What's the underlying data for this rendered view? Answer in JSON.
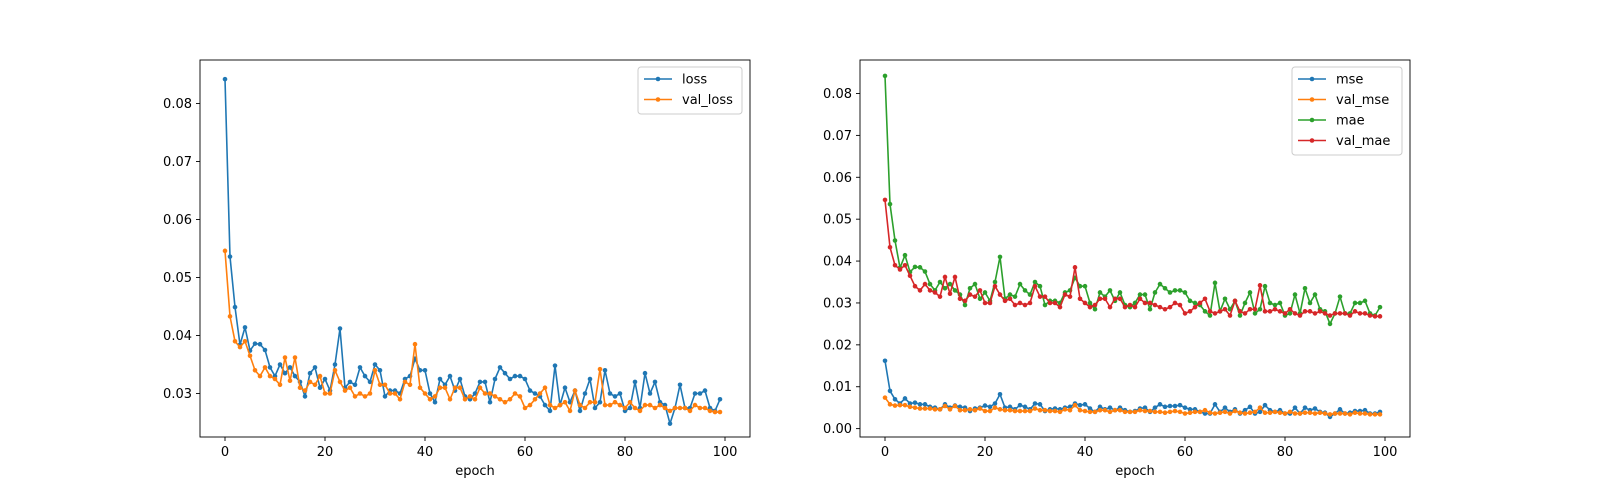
{
  "chart_data": [
    {
      "type": "line",
      "xlabel": "epoch",
      "ylabel": "",
      "xlim": [
        -5,
        105
      ],
      "ylim": [
        0.0225,
        0.0875
      ],
      "xticks": [
        0,
        20,
        40,
        60,
        80,
        100
      ],
      "yticks": [
        0.03,
        0.04,
        0.05,
        0.06,
        0.07,
        0.08
      ],
      "ytick_decimals": 2,
      "legend": "top-right",
      "markers": true,
      "series": [
        {
          "name": "loss",
          "color": "#1f77b4",
          "values": [
            0.0842,
            0.0536,
            0.0449,
            0.0384,
            0.0414,
            0.0374,
            0.0386,
            0.0385,
            0.0375,
            0.0345,
            0.033,
            0.035,
            0.0335,
            0.0345,
            0.033,
            0.032,
            0.0295,
            0.0335,
            0.0345,
            0.031,
            0.0325,
            0.0305,
            0.035,
            0.0412,
            0.031,
            0.032,
            0.0315,
            0.0345,
            0.033,
            0.032,
            0.035,
            0.034,
            0.0295,
            0.0305,
            0.0305,
            0.03,
            0.0325,
            0.033,
            0.036,
            0.034,
            0.034,
            0.03,
            0.0285,
            0.0325,
            0.0315,
            0.033,
            0.0305,
            0.0325,
            0.0295,
            0.029,
            0.03,
            0.032,
            0.032,
            0.0285,
            0.0325,
            0.0345,
            0.0335,
            0.0325,
            0.033,
            0.033,
            0.0325,
            0.0305,
            0.03,
            0.0295,
            0.028,
            0.027,
            0.0348,
            0.028,
            0.031,
            0.0285,
            0.0305,
            0.027,
            0.03,
            0.0325,
            0.0275,
            0.0285,
            0.034,
            0.03,
            0.0295,
            0.03,
            0.027,
            0.0275,
            0.032,
            0.0275,
            0.0335,
            0.03,
            0.032,
            0.0285,
            0.028,
            0.0248,
            0.0275,
            0.0315,
            0.0275,
            0.0275,
            0.03,
            0.03,
            0.0305,
            0.0275,
            0.027,
            0.029
          ]
        },
        {
          "name": "val_loss",
          "color": "#ff7f0e",
          "values": [
            0.0546,
            0.0433,
            0.039,
            0.038,
            0.039,
            0.0365,
            0.034,
            0.033,
            0.0345,
            0.033,
            0.0325,
            0.0315,
            0.0362,
            0.0322,
            0.0362,
            0.031,
            0.0305,
            0.032,
            0.0315,
            0.033,
            0.03,
            0.03,
            0.034,
            0.032,
            0.0305,
            0.031,
            0.0295,
            0.03,
            0.0295,
            0.03,
            0.034,
            0.0315,
            0.0315,
            0.03,
            0.03,
            0.029,
            0.032,
            0.0315,
            0.0385,
            0.031,
            0.03,
            0.029,
            0.0295,
            0.031,
            0.031,
            0.029,
            0.031,
            0.031,
            0.029,
            0.0295,
            0.029,
            0.031,
            0.03,
            0.03,
            0.0295,
            0.029,
            0.0285,
            0.029,
            0.03,
            0.0295,
            0.0275,
            0.028,
            0.029,
            0.03,
            0.031,
            0.028,
            0.0275,
            0.028,
            0.0285,
            0.027,
            0.0305,
            0.028,
            0.0275,
            0.0285,
            0.0285,
            0.0342,
            0.028,
            0.028,
            0.0285,
            0.028,
            0.0275,
            0.0285,
            0.0275,
            0.027,
            0.028,
            0.028,
            0.0275,
            0.028,
            0.0275,
            0.027,
            0.0275,
            0.0275,
            0.0275,
            0.027,
            0.028,
            0.0275,
            0.0275,
            0.027,
            0.0268,
            0.0268
          ]
        }
      ]
    },
    {
      "type": "line",
      "xlabel": "epoch",
      "ylabel": "",
      "xlim": [
        -5,
        105
      ],
      "ylim": [
        -0.002,
        0.088
      ],
      "xticks": [
        0,
        20,
        40,
        60,
        80,
        100
      ],
      "yticks": [
        0.0,
        0.01,
        0.02,
        0.03,
        0.04,
        0.05,
        0.06,
        0.07,
        0.08
      ],
      "ytick_decimals": 2,
      "legend": "top-right",
      "markers": true,
      "series": [
        {
          "name": "mse",
          "color": "#1f77b4",
          "values": [
            0.0162,
            0.009,
            0.007,
            0.006,
            0.0072,
            0.006,
            0.0062,
            0.0058,
            0.0058,
            0.0052,
            0.005,
            0.0046,
            0.0058,
            0.005,
            0.0055,
            0.0052,
            0.005,
            0.0042,
            0.0048,
            0.005,
            0.0055,
            0.0052,
            0.006,
            0.0082,
            0.005,
            0.0052,
            0.0046,
            0.0056,
            0.0052,
            0.0046,
            0.006,
            0.0058,
            0.0042,
            0.0046,
            0.0048,
            0.0046,
            0.005,
            0.0052,
            0.006,
            0.0056,
            0.0058,
            0.0048,
            0.004,
            0.0052,
            0.0046,
            0.005,
            0.0044,
            0.005,
            0.0044,
            0.004,
            0.0042,
            0.0048,
            0.005,
            0.004,
            0.005,
            0.0058,
            0.0052,
            0.0054,
            0.0054,
            0.0056,
            0.005,
            0.0046,
            0.0046,
            0.004,
            0.0036,
            0.0036,
            0.0058,
            0.004,
            0.005,
            0.004,
            0.0046,
            0.0036,
            0.0044,
            0.0052,
            0.0036,
            0.004,
            0.0056,
            0.0044,
            0.004,
            0.0044,
            0.0036,
            0.0036,
            0.005,
            0.0036,
            0.005,
            0.0044,
            0.0048,
            0.004,
            0.0038,
            0.0028,
            0.0036,
            0.0046,
            0.0036,
            0.0038,
            0.0042,
            0.0042,
            0.0044,
            0.0036,
            0.0036,
            0.004
          ]
        },
        {
          "name": "val_mse",
          "color": "#ff7f0e",
          "values": [
            0.0074,
            0.0058,
            0.0055,
            0.0056,
            0.0056,
            0.0052,
            0.005,
            0.0048,
            0.0048,
            0.0048,
            0.0046,
            0.0046,
            0.0054,
            0.0046,
            0.0054,
            0.0044,
            0.0044,
            0.0046,
            0.0044,
            0.0048,
            0.0042,
            0.0042,
            0.005,
            0.0046,
            0.0044,
            0.0044,
            0.0042,
            0.0042,
            0.0042,
            0.0042,
            0.0048,
            0.0044,
            0.0044,
            0.0042,
            0.0042,
            0.004,
            0.0046,
            0.0044,
            0.0056,
            0.0044,
            0.0042,
            0.004,
            0.004,
            0.0044,
            0.0044,
            0.004,
            0.0044,
            0.0044,
            0.004,
            0.004,
            0.004,
            0.0044,
            0.0042,
            0.0042,
            0.004,
            0.004,
            0.0038,
            0.004,
            0.0042,
            0.004,
            0.0036,
            0.0038,
            0.004,
            0.004,
            0.0044,
            0.0038,
            0.0036,
            0.0038,
            0.004,
            0.0036,
            0.0042,
            0.0038,
            0.0036,
            0.0038,
            0.004,
            0.005,
            0.0038,
            0.0038,
            0.004,
            0.0038,
            0.0036,
            0.004,
            0.0036,
            0.0036,
            0.0038,
            0.0038,
            0.0036,
            0.0038,
            0.0036,
            0.0034,
            0.0036,
            0.0036,
            0.0036,
            0.0034,
            0.0038,
            0.0036,
            0.0036,
            0.0034,
            0.0034,
            0.0034
          ]
        },
        {
          "name": "mae",
          "color": "#2ca02c",
          "values": [
            0.0842,
            0.0536,
            0.0449,
            0.0384,
            0.0414,
            0.0374,
            0.0386,
            0.0385,
            0.0375,
            0.0345,
            0.033,
            0.035,
            0.0335,
            0.0345,
            0.033,
            0.032,
            0.0295,
            0.0335,
            0.0345,
            0.031,
            0.0325,
            0.0305,
            0.035,
            0.041,
            0.031,
            0.032,
            0.0315,
            0.0345,
            0.033,
            0.032,
            0.035,
            0.034,
            0.0295,
            0.0305,
            0.0305,
            0.03,
            0.0325,
            0.033,
            0.036,
            0.034,
            0.034,
            0.03,
            0.0285,
            0.0325,
            0.0315,
            0.033,
            0.0305,
            0.0325,
            0.0295,
            0.029,
            0.03,
            0.032,
            0.032,
            0.0285,
            0.0325,
            0.0345,
            0.0335,
            0.0325,
            0.033,
            0.033,
            0.0325,
            0.0305,
            0.03,
            0.0295,
            0.028,
            0.027,
            0.0348,
            0.028,
            0.031,
            0.0285,
            0.0305,
            0.027,
            0.03,
            0.0325,
            0.0275,
            0.0285,
            0.034,
            0.03,
            0.0295,
            0.03,
            0.027,
            0.0275,
            0.032,
            0.0275,
            0.0335,
            0.03,
            0.032,
            0.0285,
            0.028,
            0.025,
            0.0275,
            0.0315,
            0.0275,
            0.0275,
            0.03,
            0.03,
            0.0305,
            0.0275,
            0.027,
            0.029
          ]
        },
        {
          "name": "val_mae",
          "color": "#d62728",
          "values": [
            0.0546,
            0.0433,
            0.039,
            0.038,
            0.039,
            0.0365,
            0.034,
            0.033,
            0.0345,
            0.033,
            0.0325,
            0.0315,
            0.0362,
            0.0322,
            0.0362,
            0.031,
            0.0305,
            0.032,
            0.0315,
            0.033,
            0.03,
            0.03,
            0.034,
            0.032,
            0.0305,
            0.031,
            0.0295,
            0.03,
            0.0295,
            0.03,
            0.034,
            0.0315,
            0.0315,
            0.03,
            0.03,
            0.029,
            0.032,
            0.0315,
            0.0385,
            0.031,
            0.03,
            0.029,
            0.0295,
            0.031,
            0.031,
            0.029,
            0.031,
            0.031,
            0.029,
            0.0295,
            0.029,
            0.031,
            0.03,
            0.03,
            0.0295,
            0.029,
            0.0285,
            0.029,
            0.03,
            0.0295,
            0.0275,
            0.028,
            0.029,
            0.03,
            0.031,
            0.028,
            0.0275,
            0.028,
            0.0285,
            0.027,
            0.0305,
            0.028,
            0.0275,
            0.0285,
            0.0285,
            0.0342,
            0.028,
            0.028,
            0.0285,
            0.028,
            0.0275,
            0.0285,
            0.0275,
            0.027,
            0.028,
            0.028,
            0.0275,
            0.028,
            0.0275,
            0.027,
            0.0275,
            0.0275,
            0.0275,
            0.027,
            0.028,
            0.0275,
            0.0275,
            0.027,
            0.0268,
            0.0268
          ]
        }
      ]
    }
  ]
}
